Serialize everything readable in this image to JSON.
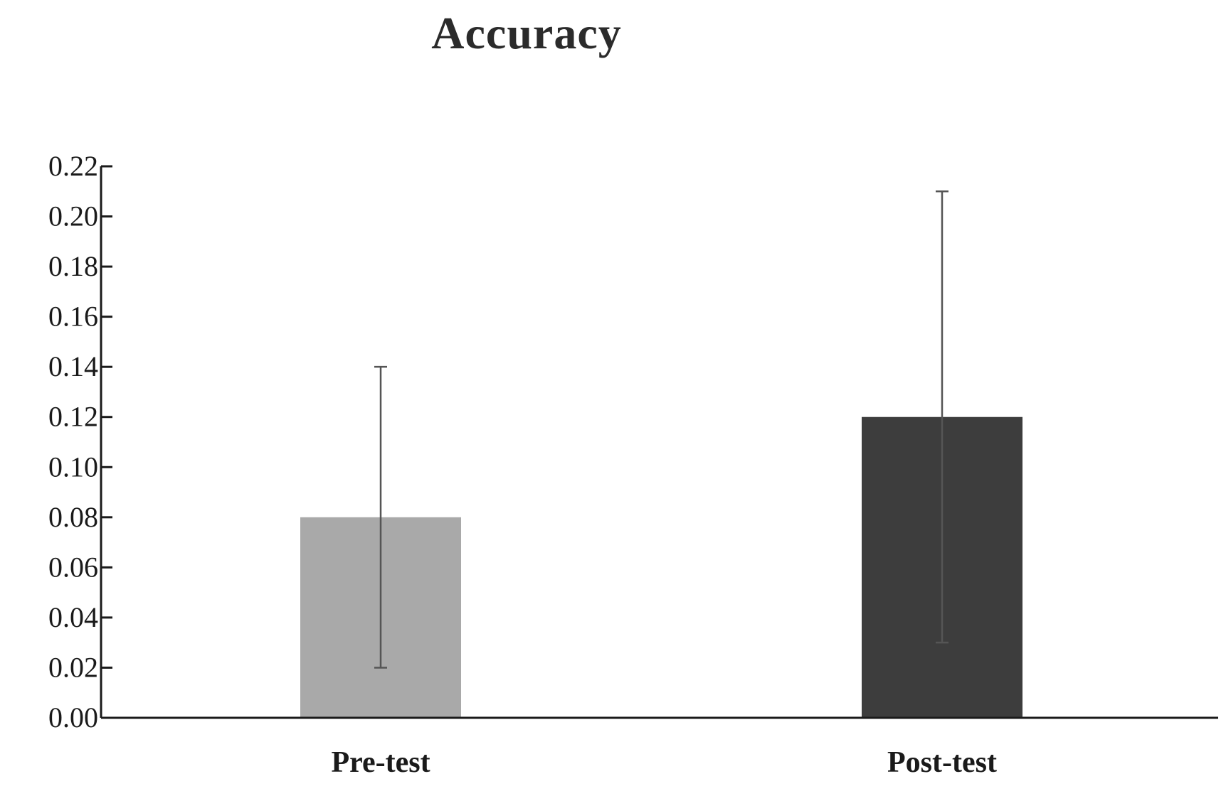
{
  "chart_data": {
    "type": "bar",
    "title": "Accuracy",
    "categories": [
      "Pre-test",
      "Post-test"
    ],
    "values": [
      0.08,
      0.12
    ],
    "error_bars": [
      {
        "low": 0.02,
        "high": 0.14
      },
      {
        "low": 0.03,
        "high": 0.21
      }
    ],
    "bar_colors": [
      "#a9a9a9",
      "#3d3d3d"
    ],
    "xlabel": "",
    "ylabel": "",
    "ylim": [
      0,
      0.22
    ],
    "yticks": [
      "0.00",
      "0.02",
      "0.04",
      "0.06",
      "0.08",
      "0.10",
      "0.12",
      "0.14",
      "0.16",
      "0.18",
      "0.20",
      "0.22"
    ],
    "grid": false,
    "legend": "none"
  }
}
